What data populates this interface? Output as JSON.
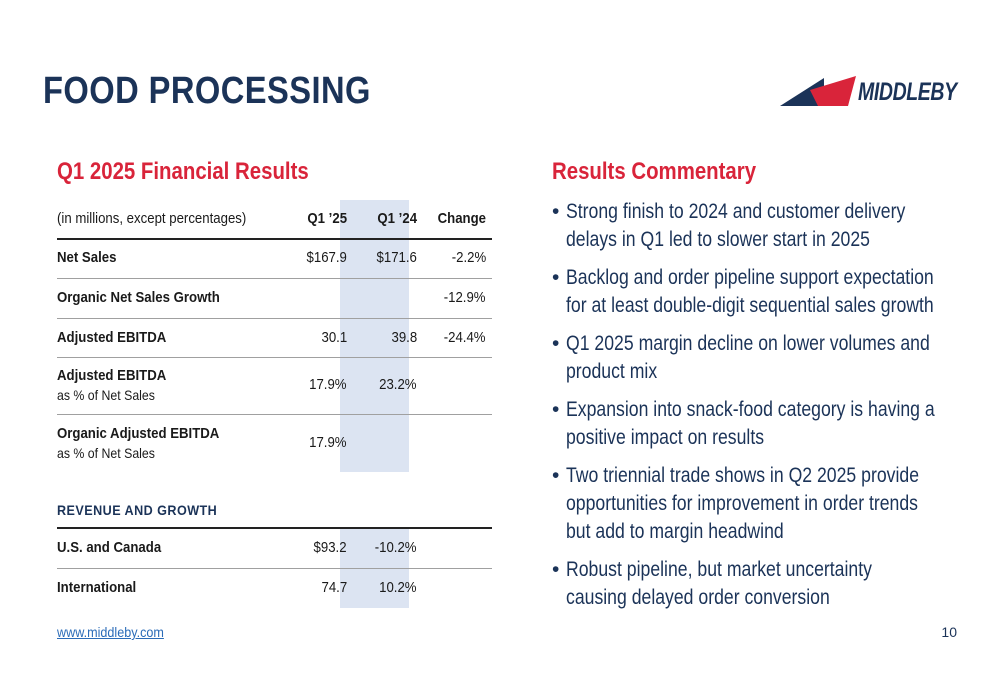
{
  "page": {
    "title": "FOOD PROCESSING",
    "logo_text": "MIDDLEBY",
    "footer_link": "www.middleby.com",
    "page_number": "10"
  },
  "colors": {
    "navy": "#1b3358",
    "red": "#d9243a",
    "highlight": "#dce4f2",
    "link": "#2b6cb8"
  },
  "results": {
    "heading": "Q1 2025 Financial Results",
    "header": {
      "label": "(in millions, except percentages)",
      "q1_25": "Q1 ’25",
      "q1_24": "Q1 ’24",
      "change": "Change"
    },
    "rows": [
      {
        "label": "Net Sales",
        "q1_25": "$167.9",
        "q1_24": "$171.6",
        "change": "-2.2%"
      },
      {
        "label": "Organic Net Sales Growth",
        "q1_25": "",
        "q1_24": "",
        "change": "-12.9%"
      },
      {
        "label": "Adjusted EBITDA",
        "q1_25": "30.1",
        "q1_24": "39.8",
        "change": "-24.4%"
      },
      {
        "label": "Adjusted EBITDA",
        "sublabel": "as % of Net Sales",
        "q1_25": "17.9%",
        "q1_24": "23.2%",
        "change": ""
      },
      {
        "label": "Organic Adjusted EBITDA",
        "sublabel": "as % of Net Sales",
        "q1_25": "17.9%",
        "q1_24": "",
        "change": ""
      }
    ],
    "revenue_heading": "REVENUE AND GROWTH",
    "revenue_rows": [
      {
        "label": "U.S. and Canada",
        "value": "$93.2",
        "growth": "-10.2%"
      },
      {
        "label": "International",
        "value": "74.7",
        "growth": "10.2%"
      }
    ]
  },
  "commentary": {
    "heading": "Results Commentary",
    "bullet_char": "•",
    "bullets": [
      "Strong finish to 2024 and customer delivery delays in Q1 led to slower start in 2025",
      "Backlog and order pipeline support expectation for at least double-digit sequential sales growth",
      "Q1 2025 margin decline on lower volumes and product mix",
      "Expansion into snack-food category is having a positive impact on results",
      "Two triennial trade shows in Q2 2025 provide opportunities for improvement in order trends but add to margin headwind",
      "Robust pipeline, but market uncertainty causing delayed order conversion"
    ]
  }
}
